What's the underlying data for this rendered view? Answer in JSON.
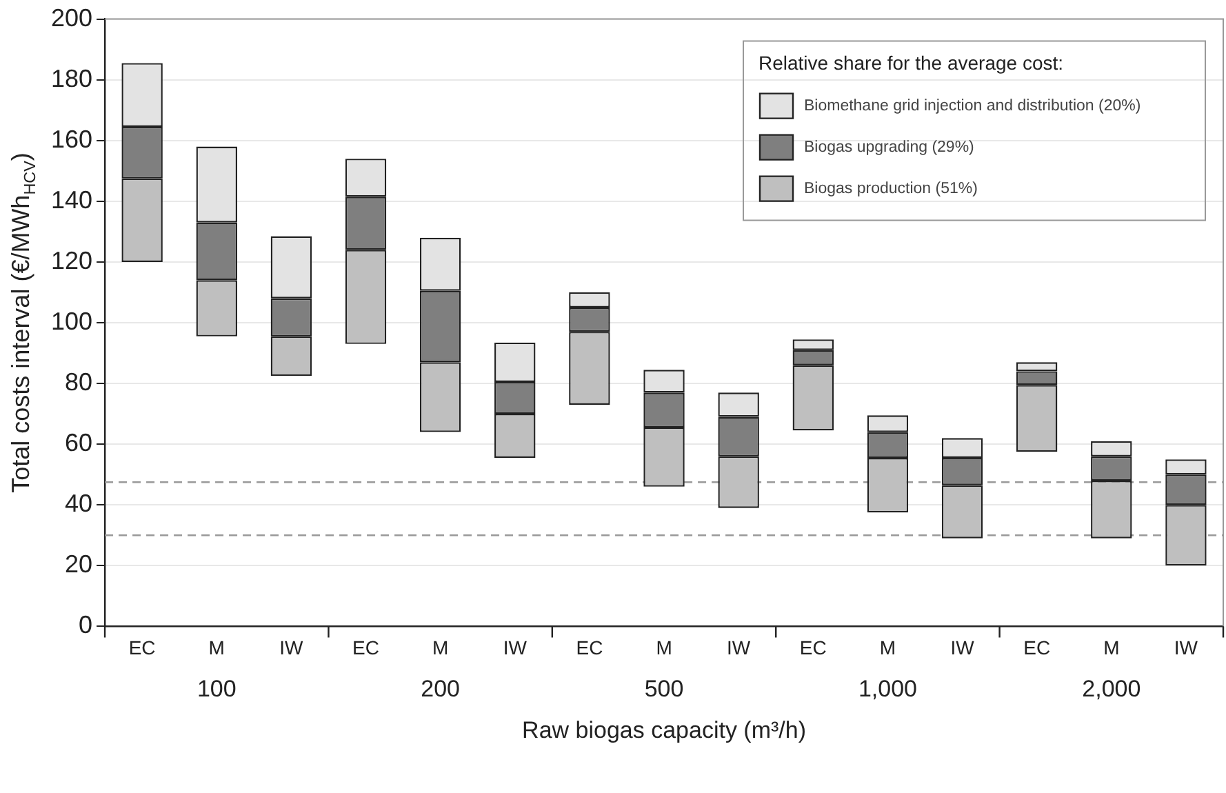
{
  "chart_data": {
    "type": "bar",
    "stacked": true,
    "xlabel": "Raw biogas capacity (m³/h)",
    "ylabel": "Total costs interval (€/MWh$_{HCV}$)",
    "legend_title": "Relative share for the average cost:",
    "legend": "top right",
    "grid": "y",
    "categories": [
      "EC",
      "M",
      "IW",
      "EC",
      "M",
      "IW",
      "EC",
      "M",
      "IW",
      "EC",
      "M",
      "IW",
      "EC",
      "M",
      "IW"
    ],
    "series": [
      {
        "name": "Biogas production (51%)",
        "color": "#bfbfbf",
        "base": [
          120,
          95.5,
          82.5,
          93,
          64,
          55.5,
          73,
          46,
          39,
          64.5,
          37.5,
          29,
          57.5,
          29,
          20
        ],
        "values": [
          27.5,
          18.5,
          13,
          31,
          23,
          14.5,
          24,
          19.5,
          17,
          21.5,
          18,
          17.5,
          22,
          19,
          20
        ]
      },
      {
        "name": "Biogas upgrading (29%)",
        "color": "#7f7f7f",
        "base": [
          147.5,
          114,
          95.5,
          124,
          87,
          70,
          97,
          65.5,
          56,
          86,
          55.5,
          46.5,
          79.5,
          48,
          40
        ],
        "values": [
          17,
          19,
          12.5,
          17.5,
          23.5,
          10.5,
          8,
          11.5,
          13,
          5,
          8.5,
          9,
          4.5,
          8,
          10
        ]
      },
      {
        "name": "Biomethane grid injection and distribution (20%)",
        "color": "#e3e3e3",
        "base": [
          164.5,
          133,
          108,
          141.5,
          110.5,
          80.5,
          105,
          77,
          69,
          91,
          64,
          55.5,
          84,
          56,
          50
        ],
        "values": [
          21,
          25,
          20.5,
          12.5,
          17.5,
          13,
          5,
          7.5,
          8,
          3.5,
          5.5,
          6.5,
          3,
          5,
          5
        ]
      }
    ],
    "ylim": [
      0,
      200
    ],
    "yticks": [
      0,
      20,
      40,
      60,
      80,
      100,
      120,
      140,
      160,
      180,
      200
    ],
    "ref_lines": [
      {
        "axis": "y",
        "value": 47.5,
        "color": "#999999",
        "line_style": "dashed"
      },
      {
        "axis": "y",
        "value": 30,
        "color": "#999999",
        "line_style": "dashed"
      }
    ],
    "annotations": [
      "100",
      "200",
      "500",
      "1,000",
      "2,000"
    ]
  }
}
